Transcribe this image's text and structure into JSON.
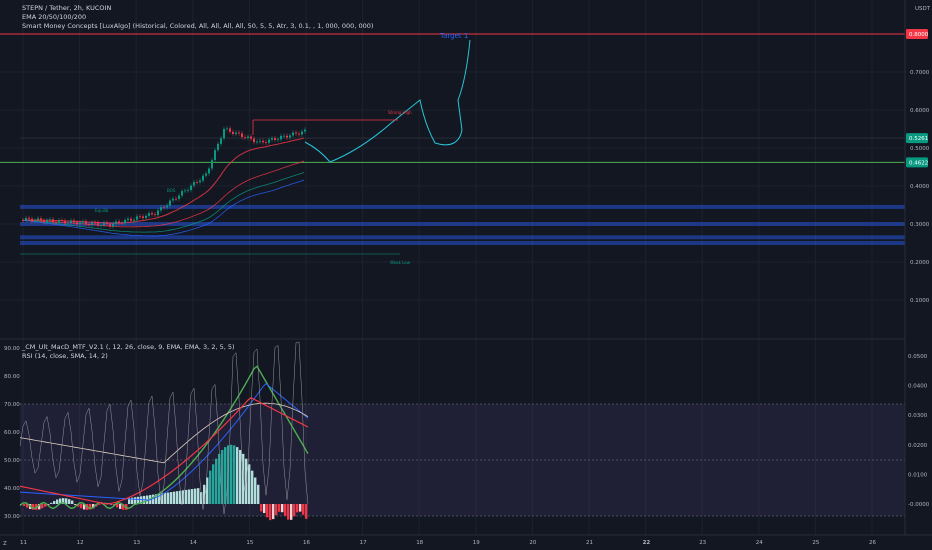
{
  "legend_main": [
    "STEPN / Tether, 2h, KUCOIN",
    "EMA 20/50/100/200",
    "Smart Money Concepts [LuxAlgo] (Historical, Colored, All, All, All, All, 50, 5, 5, Atr, 3, 0.1, , 1, 000, 000, 000)"
  ],
  "legend_sub": [
    "_CM_Ult_MacD_MTF_V2.1 (, 12, 26, close, 9, EMA, EMA, 3, 2, 5, 5)",
    "RSI (14, close, SMA, 14, 2)"
  ],
  "price_axis": {
    "currency": "USDT",
    "ticks": [
      "0.7000",
      "0.6000",
      "0.5000",
      "0.4000",
      "0.3000",
      "0.2000",
      "0.1000"
    ],
    "tick_values": [
      0.7,
      0.6,
      0.5,
      0.4,
      0.3,
      0.2,
      0.1
    ],
    "range": [
      0.0,
      0.82
    ],
    "badges": [
      {
        "label": "0.8000",
        "value": 0.8,
        "color": "#f23645"
      },
      {
        "label": "0.5261",
        "value": 0.5261,
        "color": "#089981"
      },
      {
        "label": "0.4622",
        "value": 0.4622,
        "color": "#089981"
      }
    ]
  },
  "sub_axis_left": {
    "ticks": [
      "90.00",
      "80.00",
      "70.00",
      "60.00",
      "50.00",
      "40.00",
      "30.00"
    ],
    "tick_values": [
      90,
      80,
      70,
      60,
      50,
      40,
      30
    ]
  },
  "sub_axis_right": {
    "ticks": [
      "0.0500",
      "0.0400",
      "0.0300",
      "0.0200",
      "0.0100",
      "-0.0000"
    ],
    "tick_values": [
      0.05,
      0.04,
      0.03,
      0.02,
      0.01,
      0.0
    ]
  },
  "time_axis": {
    "labels": [
      "11",
      "12",
      "13",
      "14",
      "15",
      "16",
      "17",
      "18",
      "19",
      "20",
      "21",
      "22",
      "23",
      "24",
      "25",
      "26"
    ],
    "bold_labels": [
      "22"
    ]
  },
  "chart_data": {
    "type": "line",
    "title": "STEPN / Tether, 2h, KUCOIN",
    "levels": [
      {
        "name": "target",
        "value": 0.8,
        "color": "#f23645"
      },
      {
        "name": "support",
        "value": 0.4622,
        "color": "#4caf50"
      }
    ],
    "zone_levels": [
      0.345,
      0.3,
      0.265,
      0.25
    ],
    "annotations": [
      {
        "text": "Target 1",
        "color": "#2962ff"
      },
      {
        "text": "Strong High",
        "color": "#f23645"
      },
      {
        "text": "Weak Low",
        "color": "#089981"
      },
      {
        "text": "BOS",
        "color": "#089981"
      },
      {
        "text": "Equilib",
        "color": "#089981"
      }
    ],
    "rsi_levels": [
      70,
      50,
      30
    ],
    "last_price": 0.5261
  }
}
